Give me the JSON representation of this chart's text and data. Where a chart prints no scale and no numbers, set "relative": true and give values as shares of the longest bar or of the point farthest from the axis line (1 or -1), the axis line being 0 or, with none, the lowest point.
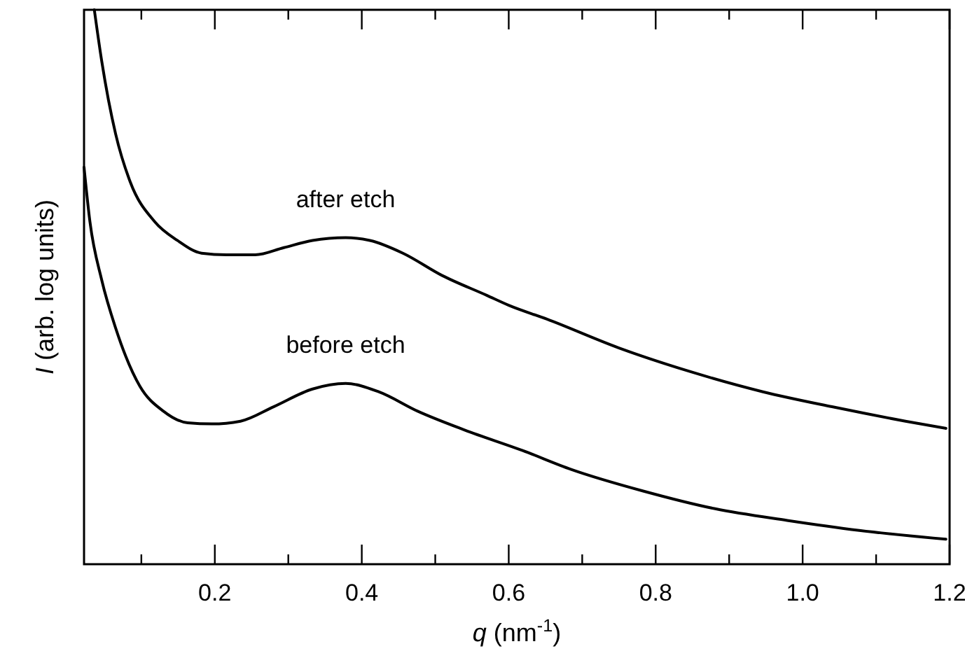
{
  "chart_data": {
    "type": "line",
    "relative": true,
    "xlabel": "q (nm$^{-1}$)",
    "ylabel": "I (arb. log units)",
    "xlim": [
      0.022,
      1.2
    ],
    "xticks": [
      {
        "value": 0.1,
        "label": null
      },
      0.2,
      {
        "value": 0.3,
        "label": null
      },
      0.4,
      {
        "value": 0.5,
        "label": null
      },
      0.6,
      {
        "value": 0.7,
        "label": null
      },
      0.8,
      {
        "value": 0.9,
        "label": null
      },
      {
        "value": 1.0,
        "label": "1.0"
      },
      {
        "value": 1.1,
        "label": null
      },
      1.2
    ],
    "series": [
      {
        "name": "after etch",
        "color": "#000000",
        "x": [
          0.036,
          0.046,
          0.065,
          0.085,
          0.118,
          0.149,
          0.182,
          0.216,
          0.255,
          0.294,
          0.333,
          0.378,
          0.411,
          0.456,
          0.509,
          0.57,
          0.6,
          0.652,
          0.75,
          0.848,
          0.946,
          1.04,
          1.14,
          1.195
        ],
        "values": [
          1.0,
          0.908,
          0.776,
          0.689,
          0.618,
          0.584,
          0.561,
          0.558,
          0.558,
          0.571,
          0.584,
          0.589,
          0.584,
          0.561,
          0.521,
          0.485,
          0.467,
          0.442,
          0.39,
          0.347,
          0.311,
          0.284,
          0.258,
          0.245
        ]
      },
      {
        "name": "before etch",
        "color": "#000000",
        "x": [
          0.022,
          0.03,
          0.046,
          0.065,
          0.098,
          0.13,
          0.163,
          0.196,
          0.235,
          0.28,
          0.333,
          0.378,
          0.423,
          0.476,
          0.54,
          0.619,
          0.685,
          0.783,
          0.881,
          0.979,
          1.077,
          1.195
        ],
        "values": [
          0.716,
          0.618,
          0.513,
          0.426,
          0.321,
          0.276,
          0.255,
          0.253,
          0.258,
          0.284,
          0.316,
          0.326,
          0.311,
          0.276,
          0.242,
          0.205,
          0.171,
          0.132,
          0.1,
          0.079,
          0.061,
          0.045
        ]
      }
    ]
  }
}
